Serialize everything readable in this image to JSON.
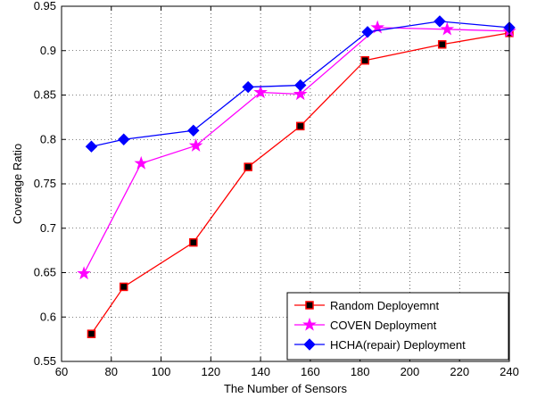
{
  "chart_data": {
    "type": "line",
    "xlabel": "The Number of Sensors",
    "ylabel": "Coverage Ratio",
    "xlim": [
      60,
      240
    ],
    "ylim": [
      0.55,
      0.95
    ],
    "xticks": [
      60,
      80,
      100,
      120,
      140,
      160,
      180,
      200,
      220,
      240
    ],
    "yticks": [
      0.55,
      0.6,
      0.65,
      0.7,
      0.75,
      0.8,
      0.85,
      0.9,
      0.95
    ],
    "xtick_labels": [
      "60",
      "80",
      "100",
      "120",
      "140",
      "160",
      "180",
      "200",
      "220",
      "240"
    ],
    "ytick_labels": [
      "0.55",
      "0.6",
      "0.65",
      "0.7",
      "0.75",
      "0.8",
      "0.85",
      "0.9",
      "0.95"
    ],
    "grid": true,
    "legend_position": "bottom-right",
    "series": [
      {
        "name": "Random Deployemnt",
        "color": "#ff0000",
        "marker": "square",
        "marker_fill": "#000000",
        "x": [
          72,
          85,
          113,
          135,
          156,
          182,
          213,
          240
        ],
        "y": [
          0.581,
          0.634,
          0.684,
          0.769,
          0.815,
          0.889,
          0.907,
          0.92
        ]
      },
      {
        "name": "COVEN Deployment",
        "color": "#ff00ff",
        "marker": "star",
        "marker_fill": "#ff00ff",
        "x": [
          69,
          92,
          114,
          140,
          156,
          187,
          215,
          240
        ],
        "y": [
          0.649,
          0.773,
          0.793,
          0.853,
          0.851,
          0.926,
          0.924,
          0.922
        ]
      },
      {
        "name": "HCHA(repair) Deployment",
        "color": "#0000ff",
        "marker": "diamond",
        "marker_fill": "#0000ff",
        "x": [
          72,
          85,
          113,
          135,
          156,
          183,
          212,
          240
        ],
        "y": [
          0.792,
          0.8,
          0.81,
          0.859,
          0.861,
          0.921,
          0.933,
          0.926
        ]
      }
    ]
  }
}
